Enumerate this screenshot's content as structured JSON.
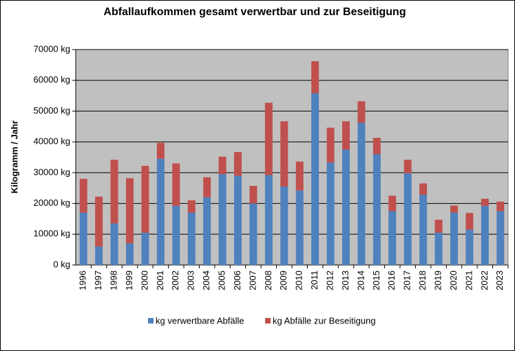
{
  "chart_data": {
    "type": "stacked_bar",
    "title": "Abfallaufkommen  gesamt verwertbar und zur Beseitigung",
    "ylabel": "Kilogramm / Jahr",
    "categories": [
      "1996",
      "1997",
      "1998",
      "1999",
      "2000",
      "2001",
      "2002",
      "2003",
      "2004",
      "2005",
      "2006",
      "2007",
      "2008",
      "2009",
      "2010",
      "2011",
      "2012",
      "2013",
      "2014",
      "2015",
      "2016",
      "2017",
      "2018",
      "2019",
      "2020",
      "2021",
      "2022",
      "2023"
    ],
    "series": [
      {
        "name": "kg verwertbare Abfälle",
        "color": "#4f81bd",
        "values": [
          17000,
          6000,
          13500,
          7000,
          10500,
          34500,
          19200,
          17000,
          22000,
          29500,
          29000,
          20000,
          29200,
          25500,
          24200,
          55800,
          33300,
          37500,
          46200,
          36000,
          17500,
          29800,
          22800,
          10500,
          17000,
          11500,
          19200,
          17500
        ]
      },
      {
        "name": "kg Abfälle zur Beseitigung",
        "color": "#c0504d",
        "values": [
          11000,
          16200,
          20700,
          21200,
          21700,
          5200,
          13800,
          4000,
          6500,
          5700,
          7700,
          5700,
          23500,
          21200,
          9400,
          10400,
          11300,
          9200,
          7000,
          5300,
          5000,
          4400,
          3700,
          4200,
          2300,
          5400,
          2300,
          3100
        ]
      }
    ],
    "ylim": [
      0,
      70000
    ],
    "yticks": [
      {
        "value": 0,
        "label": "0 kg"
      },
      {
        "value": 10000,
        "label": "10000 kg"
      },
      {
        "value": 20000,
        "label": "20000 kg"
      },
      {
        "value": 30000,
        "label": "30000 kg"
      },
      {
        "value": 40000,
        "label": "40000 kg"
      },
      {
        "value": 50000,
        "label": "50000 kg"
      },
      {
        "value": 60000,
        "label": "60000 kg"
      },
      {
        "value": 70000,
        "label": "70000 kg"
      }
    ],
    "grid": true,
    "legend": "bottom",
    "plot_background": "#c0c0c0"
  }
}
